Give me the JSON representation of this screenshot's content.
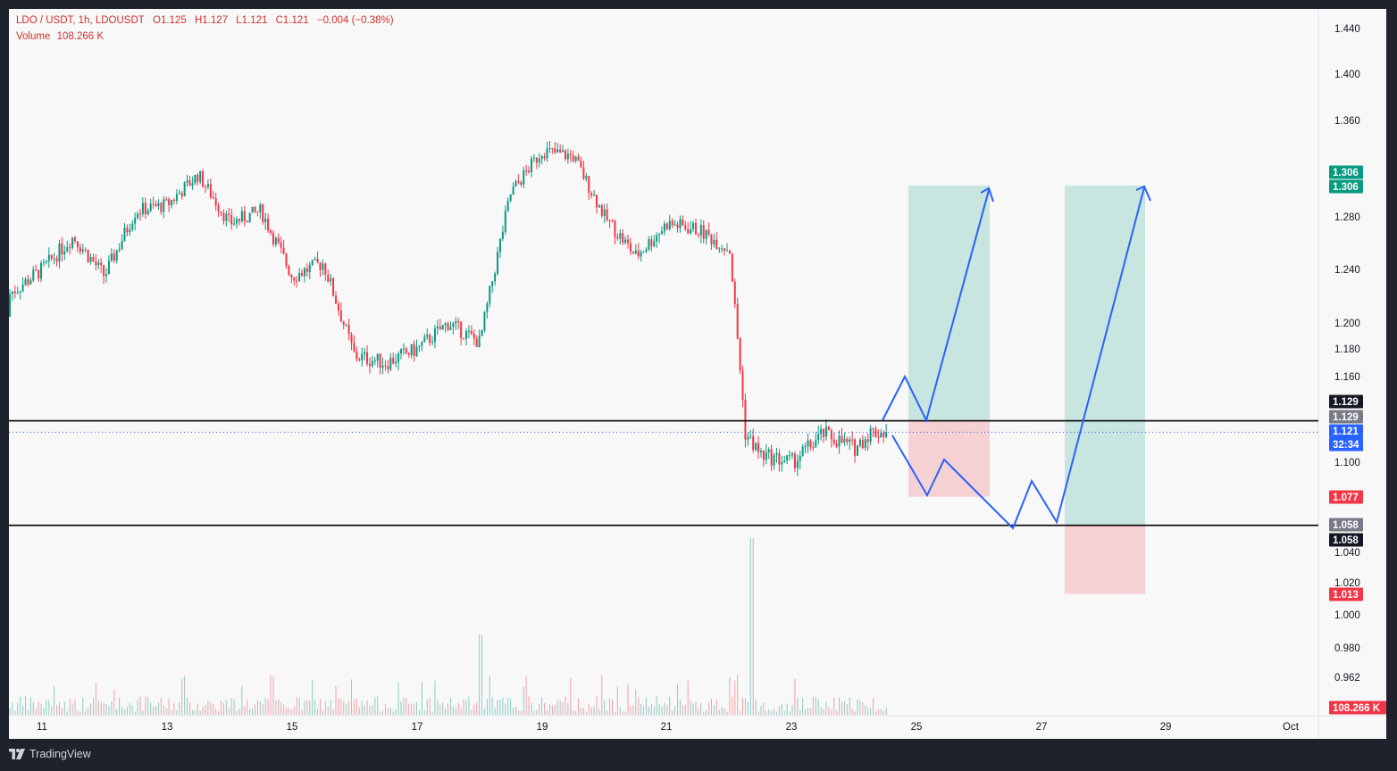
{
  "header": {
    "pair": "LDO / USDT, 1h, LDOUSDT",
    "open": "O1.125",
    "high": "H1.127",
    "low": "L1.121",
    "close": "C1.121",
    "change": "−0.004 (−0.38%)",
    "volume_label": "Volume",
    "volume_value": "108.266 K"
  },
  "price_axis": {
    "ticks": [
      "1.440",
      "1.400",
      "1.360",
      "1.280",
      "1.240",
      "1.200",
      "1.180",
      "1.160",
      "1.100",
      "1.040",
      "1.020",
      "1.000",
      "0.980",
      "0.962"
    ],
    "tags": [
      {
        "label": "1.306",
        "color": "#089981"
      },
      {
        "label": "1.306",
        "color": "#089981"
      },
      {
        "label": "1.129",
        "color": "#131722"
      },
      {
        "label": "1.129",
        "color": "#787b86"
      },
      {
        "label": "1.121",
        "color": "#2962ff"
      },
      {
        "label": "32:34",
        "color": "#2962ff"
      },
      {
        "label": "1.077",
        "color": "#f23645"
      },
      {
        "label": "1.058",
        "color": "#787b86"
      },
      {
        "label": "1.058",
        "color": "#131722"
      },
      {
        "label": "1.013",
        "color": "#f23645"
      },
      {
        "label": "108.266 K",
        "color": "#f23645"
      }
    ]
  },
  "time_axis": {
    "ticks": [
      "11",
      "13",
      "15",
      "17",
      "19",
      "21",
      "23",
      "25",
      "27",
      "29",
      "Oct"
    ]
  },
  "chart_data": {
    "type": "candlestick",
    "symbol": "LDOUSDT",
    "interval": "1h",
    "ylim": [
      0.95,
      1.45
    ],
    "series_points": [
      [
        "Sep 10",
        1.205
      ],
      [
        "Sep 11",
        1.24
      ],
      [
        "Sep 11 12h",
        1.265
      ],
      [
        "Sep 12",
        1.235
      ],
      [
        "Sep 12 12h",
        1.285
      ],
      [
        "Sep 13",
        1.29
      ],
      [
        "Sep 13 12h",
        1.315
      ],
      [
        "Sep 14",
        1.275
      ],
      [
        "Sep 14 12h",
        1.285
      ],
      [
        "Sep 15",
        1.235
      ],
      [
        "Sep 15 12h",
        1.245
      ],
      [
        "Sep 16",
        1.175
      ],
      [
        "Sep 16 12h",
        1.17
      ],
      [
        "Sep 17",
        1.18
      ],
      [
        "Sep 17 12h",
        1.2
      ],
      [
        "Sep 18",
        1.185
      ],
      [
        "Sep 18 12h",
        1.3
      ],
      [
        "Sep 19",
        1.335
      ],
      [
        "Sep 19 12h",
        1.33
      ],
      [
        "Sep 20",
        1.28
      ],
      [
        "Sep 20 12h",
        1.25
      ],
      [
        "Sep 21",
        1.275
      ],
      [
        "Sep 21 12h",
        1.27
      ],
      [
        "Sep 22",
        1.255
      ],
      [
        "Sep 22 6h",
        1.12
      ],
      [
        "Sep 22 12h",
        1.105
      ],
      [
        "Sep 23",
        1.1
      ],
      [
        "Sep 23 12h",
        1.12
      ],
      [
        "Sep 24",
        1.11
      ],
      [
        "Sep 24 6h",
        1.121
      ]
    ],
    "levels": {
      "resistance": 1.129,
      "support": 1.058
    },
    "long_position_1": {
      "entry": 1.129,
      "target": 1.306,
      "stop": 1.077
    },
    "long_position_2": {
      "entry": 1.058,
      "target": 1.306,
      "stop": 1.013
    },
    "last_price": 1.121,
    "last_volume": "108.266 K"
  },
  "branding": {
    "logo_text": "TradingView"
  }
}
